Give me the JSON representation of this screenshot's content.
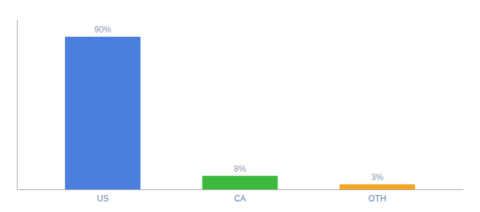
{
  "chart_data": {
    "type": "bar",
    "categories": [
      "US",
      "CA",
      "OTH"
    ],
    "values": [
      90,
      8,
      3
    ],
    "value_labels": [
      "90%",
      "8%",
      "3%"
    ],
    "data_labels": true,
    "colors": [
      "#4a7fe0",
      "#3dba3d",
      "#f5a623"
    ],
    "ylim": [
      0,
      100
    ],
    "tick_labels": "x"
  }
}
